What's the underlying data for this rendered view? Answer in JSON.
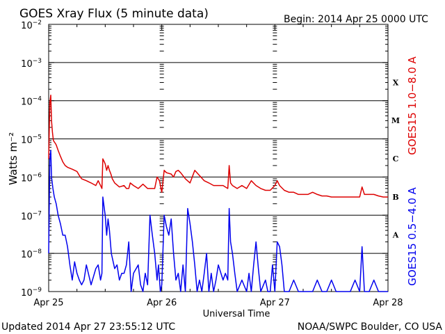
{
  "header": {
    "title": "GOES Xray Flux (5 minute data)",
    "begin": "Begin:  2014 Apr 25 0000 UTC"
  },
  "footer": {
    "updated": "Updated 2014 Apr 27 23:55:12 UTC",
    "credit": "NOAA/SWPC Boulder, CO USA"
  },
  "chart_data": {
    "type": "line",
    "title": "GOES Xray Flux (5 minute data)",
    "xlabel": "Universal Time",
    "ylabel": "Watts m⁻²",
    "yscale": "log",
    "ylim": [
      1e-09,
      0.01
    ],
    "xlim": [
      0,
      72
    ],
    "x_unit": "hours since 2014 Apr 25 0000 UTC",
    "x_ticks": [
      {
        "x": 0,
        "label": "Apr 25"
      },
      {
        "x": 24,
        "label": "Apr 26"
      },
      {
        "x": 48,
        "label": "Apr 27"
      },
      {
        "x": 72,
        "label": "Apr 28"
      }
    ],
    "y_ticks": [
      {
        "exp": -2,
        "base": "10",
        "sup": "−2"
      },
      {
        "exp": -3,
        "base": "10",
        "sup": "−3"
      },
      {
        "exp": -4,
        "base": "10",
        "sup": "−4"
      },
      {
        "exp": -5,
        "base": "10",
        "sup": "−5"
      },
      {
        "exp": -6,
        "base": "10",
        "sup": "−6"
      },
      {
        "exp": -7,
        "base": "10",
        "sup": "−7"
      },
      {
        "exp": -8,
        "base": "10",
        "sup": "−8"
      },
      {
        "exp": -9,
        "base": "10",
        "sup": "−9"
      }
    ],
    "flare_classes": [
      {
        "label": "X",
        "exp": -3.5
      },
      {
        "label": "M",
        "exp": -4.5
      },
      {
        "label": "C",
        "exp": -5.5
      },
      {
        "label": "B",
        "exp": -6.5
      },
      {
        "label": "A",
        "exp": -7.5
      }
    ],
    "grid": "horizontal at each decade",
    "series": [
      {
        "name": "GOES15 1.0−8.0 A",
        "color": "#dd0000",
        "x": [
          0,
          0.25,
          0.45,
          0.6,
          0.8,
          1.0,
          1.3,
          1.6,
          2.0,
          2.5,
          3.0,
          3.5,
          4.0,
          5.0,
          6.0,
          6.5,
          7.0,
          8.0,
          9.0,
          10.0,
          10.5,
          11.0,
          11.3,
          11.5,
          11.8,
          12.0,
          12.3,
          12.6,
          12.9,
          13.2,
          13.5,
          14.0,
          15.0,
          16.0,
          16.5,
          17.0,
          17.3,
          18.0,
          19.0,
          20.0,
          21.0,
          22.0,
          22.5,
          23.0,
          23.5,
          24.0,
          24.5,
          25.0,
          26.0,
          26.5,
          27.0,
          27.5,
          28.0,
          29.0,
          30.0,
          31.0,
          32.0,
          33.0,
          34.0,
          35.0,
          36.0,
          37.0,
          38.0,
          38.3,
          38.6,
          39.0,
          40.0,
          41.0,
          42.0,
          43.0,
          44.0,
          45.0,
          46.0,
          47.0,
          48.0,
          48.5,
          49.0,
          50.0,
          51.0,
          52.0,
          53.0,
          54.0,
          55.0,
          56.0,
          57.0,
          58.0,
          59.0,
          60.0,
          61.0,
          62.0,
          63.0,
          64.0,
          65.0,
          66.0,
          66.5,
          67.0,
          68.0,
          69.0,
          70.0,
          71.0,
          72.0
        ],
        "y": [
          3e-06,
          9e-05,
          0.00014,
          3e-05,
          1.5e-05,
          9e-06,
          8e-06,
          7e-06,
          5e-06,
          3.5e-06,
          2.5e-06,
          2e-06,
          1.8e-06,
          1.6e-06,
          1.4e-06,
          1.1e-06,
          9e-07,
          8e-07,
          7e-07,
          6e-07,
          8e-07,
          6e-07,
          5e-07,
          3e-06,
          2.5e-06,
          2.2e-06,
          1.5e-06,
          2e-06,
          1.5e-06,
          1.2e-06,
          9e-07,
          7e-07,
          5.5e-07,
          6e-07,
          5e-07,
          5e-07,
          7e-07,
          6e-07,
          5e-07,
          6.5e-07,
          5e-07,
          5e-07,
          5e-07,
          1e-06,
          8e-07,
          4e-07,
          1.5e-06,
          1.3e-06,
          1.2e-06,
          1e-06,
          1.4e-06,
          1.5e-06,
          1.3e-06,
          9e-07,
          7e-07,
          1.5e-06,
          1.1e-06,
          8e-07,
          7e-07,
          6e-07,
          6e-07,
          6e-07,
          5e-07,
          2e-06,
          7e-07,
          6e-07,
          5e-07,
          6e-07,
          5e-07,
          8e-07,
          6e-07,
          5e-07,
          4.5e-07,
          4.5e-07,
          6e-07,
          8e-07,
          6e-07,
          4.5e-07,
          4e-07,
          4e-07,
          3.5e-07,
          3.5e-07,
          3.5e-07,
          4e-07,
          3.5e-07,
          3.2e-07,
          3.2e-07,
          3e-07,
          3e-07,
          3e-07,
          3e-07,
          3e-07,
          3e-07,
          3e-07,
          5.5e-07,
          3.5e-07,
          3.5e-07,
          3.5e-07,
          3.2e-07,
          3e-07,
          3e-07
        ]
      },
      {
        "name": "GOES15 0.5−4.0 A",
        "color": "#0000ee",
        "x": [
          0,
          0.25,
          0.45,
          0.6,
          0.9,
          1.2,
          1.6,
          2.0,
          2.5,
          3.0,
          3.5,
          4.0,
          4.5,
          5.0,
          5.5,
          6.0,
          6.5,
          7.0,
          7.5,
          8.0,
          9.0,
          10.0,
          10.5,
          11.0,
          11.3,
          11.5,
          11.8,
          12.0,
          12.3,
          12.6,
          12.9,
          13.3,
          14.0,
          14.5,
          15.0,
          15.5,
          16.0,
          16.5,
          17.0,
          17.5,
          18.0,
          19.0,
          19.5,
          20.0,
          20.5,
          21.0,
          21.5,
          22.0,
          22.5,
          23.0,
          23.3,
          23.7,
          24.0,
          24.5,
          25.0,
          25.5,
          26.0,
          26.5,
          27.0,
          27.5,
          28.0,
          28.5,
          29.0,
          29.5,
          30.0,
          30.5,
          31.0,
          31.5,
          32.0,
          32.5,
          33.0,
          33.5,
          34.0,
          34.5,
          35.0,
          35.5,
          36.0,
          37.0,
          37.5,
          38.0,
          38.3,
          38.6,
          39.0,
          39.5,
          40.0,
          41.0,
          42.0,
          42.5,
          43.0,
          43.5,
          44.0,
          44.5,
          45.0,
          46.0,
          46.5,
          47.0,
          47.5,
          48.0,
          48.5,
          49.0,
          49.5,
          50.0,
          51.0,
          52.0,
          53.0,
          54.0,
          55.0,
          56.0,
          57.0,
          58.0,
          59.0,
          60.0,
          61.0,
          62.0,
          63.0,
          64.0,
          65.0,
          66.0,
          66.5,
          67.0,
          68.0,
          69.0,
          70.0,
          71.0,
          72.0
        ],
        "y": [
          1e-08,
          3e-06,
          5e-06,
          1e-06,
          5e-07,
          3e-07,
          2e-07,
          1e-07,
          6e-08,
          3e-08,
          3e-08,
          1.5e-08,
          5e-09,
          2e-09,
          6e-09,
          3e-09,
          2e-09,
          1.5e-09,
          2e-09,
          5e-09,
          1.5e-09,
          4e-09,
          5e-09,
          2e-09,
          3e-09,
          3e-07,
          1.5e-07,
          1e-07,
          3e-08,
          8e-08,
          4e-08,
          1e-08,
          4e-09,
          5e-09,
          2e-09,
          3e-09,
          3e-09,
          5e-09,
          2e-08,
          1e-09,
          3e-09,
          5e-09,
          1.5e-09,
          1e-09,
          3e-09,
          1.5e-09,
          1e-07,
          3e-08,
          1e-08,
          2e-09,
          5e-09,
          1e-09,
          1.5e-09,
          1e-07,
          5e-08,
          3e-08,
          8e-08,
          1e-08,
          2e-09,
          3e-09,
          1e-09,
          5e-09,
          1e-09,
          1.5e-07,
          6e-08,
          2e-08,
          5e-09,
          1e-09,
          2e-09,
          1e-09,
          3e-09,
          1e-08,
          1e-09,
          3e-09,
          1e-09,
          2e-09,
          5e-09,
          2e-09,
          3e-09,
          2e-09,
          1.5e-07,
          2e-08,
          1e-08,
          3e-09,
          1e-09,
          2e-09,
          1e-09,
          3e-09,
          1e-09,
          5e-09,
          2e-08,
          4e-09,
          1e-09,
          2e-09,
          1e-09,
          1e-09,
          5e-09,
          1e-09,
          2e-08,
          1.5e-08,
          5e-09,
          1e-09,
          1e-09,
          2e-09,
          1e-09,
          1e-09,
          1e-09,
          1e-09,
          2e-09,
          1e-09,
          1e-09,
          2e-09,
          1e-09,
          1e-09,
          1e-09,
          1e-09,
          2e-09,
          1e-09,
          1.5e-08,
          1e-09,
          1e-09,
          2e-09,
          1e-09,
          1e-09,
          1e-09
        ]
      }
    ]
  }
}
